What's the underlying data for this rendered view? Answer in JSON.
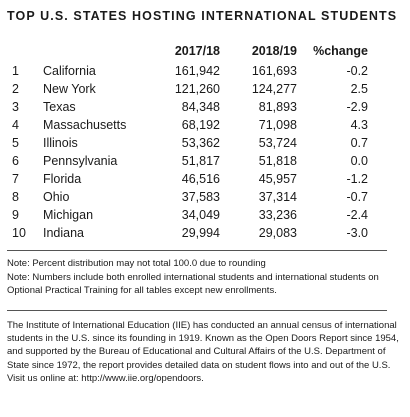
{
  "title": "TOP U.S. STATES HOSTING INTERNATIONAL STUDENTS",
  "table": {
    "headers": [
      "2017/18",
      "2018/19",
      "%change"
    ],
    "rows": [
      {
        "rank": "1",
        "state": "California",
        "y2017": "161,942",
        "y2018": "161,693",
        "change": "-0.2"
      },
      {
        "rank": "2",
        "state": "New York",
        "y2017": "121,260",
        "y2018": "124,277",
        "change": "2.5"
      },
      {
        "rank": "3",
        "state": "Texas",
        "y2017": "84,348",
        "y2018": "81,893",
        "change": "-2.9"
      },
      {
        "rank": "4",
        "state": "Massachusetts",
        "y2017": "68,192",
        "y2018": "71,098",
        "change": "4.3"
      },
      {
        "rank": "5",
        "state": "Illinois",
        "y2017": "53,362",
        "y2018": "53,724",
        "change": "0.7"
      },
      {
        "rank": "6",
        "state": "Pennsylvania",
        "y2017": "51,817",
        "y2018": "51,818",
        "change": "0.0"
      },
      {
        "rank": "7",
        "state": "Florida",
        "y2017": "46,516",
        "y2018": "45,957",
        "change": "-1.2"
      },
      {
        "rank": "8",
        "state": "Ohio",
        "y2017": "37,583",
        "y2018": "37,314",
        "change": "-0.7"
      },
      {
        "rank": "9",
        "state": "Michigan",
        "y2017": "34,049",
        "y2018": "33,236",
        "change": "-2.4"
      },
      {
        "rank": "10",
        "state": "Indiana",
        "y2017": "29,994",
        "y2018": "29,083",
        "change": "-3.0"
      }
    ]
  },
  "notes": [
    "Note: Percent distribution may not total 100.0 due to rounding",
    "Note: Numbers include both enrolled international students and international students on Optional Practical Training for all tables except new enrollments."
  ],
  "about": "The Institute of International Education (IIE) has conducted an annual census of international students in the U.S. since its founding in 1919. Known as the Open Doors Report since 1954, and supported by the Bureau of Educational and Cultural Affairs of the U.S. Department of State since 1972, the report provides detailed data on student flows into and out of the U.S. Visit us online at: http://www.iie.org/opendoors."
}
